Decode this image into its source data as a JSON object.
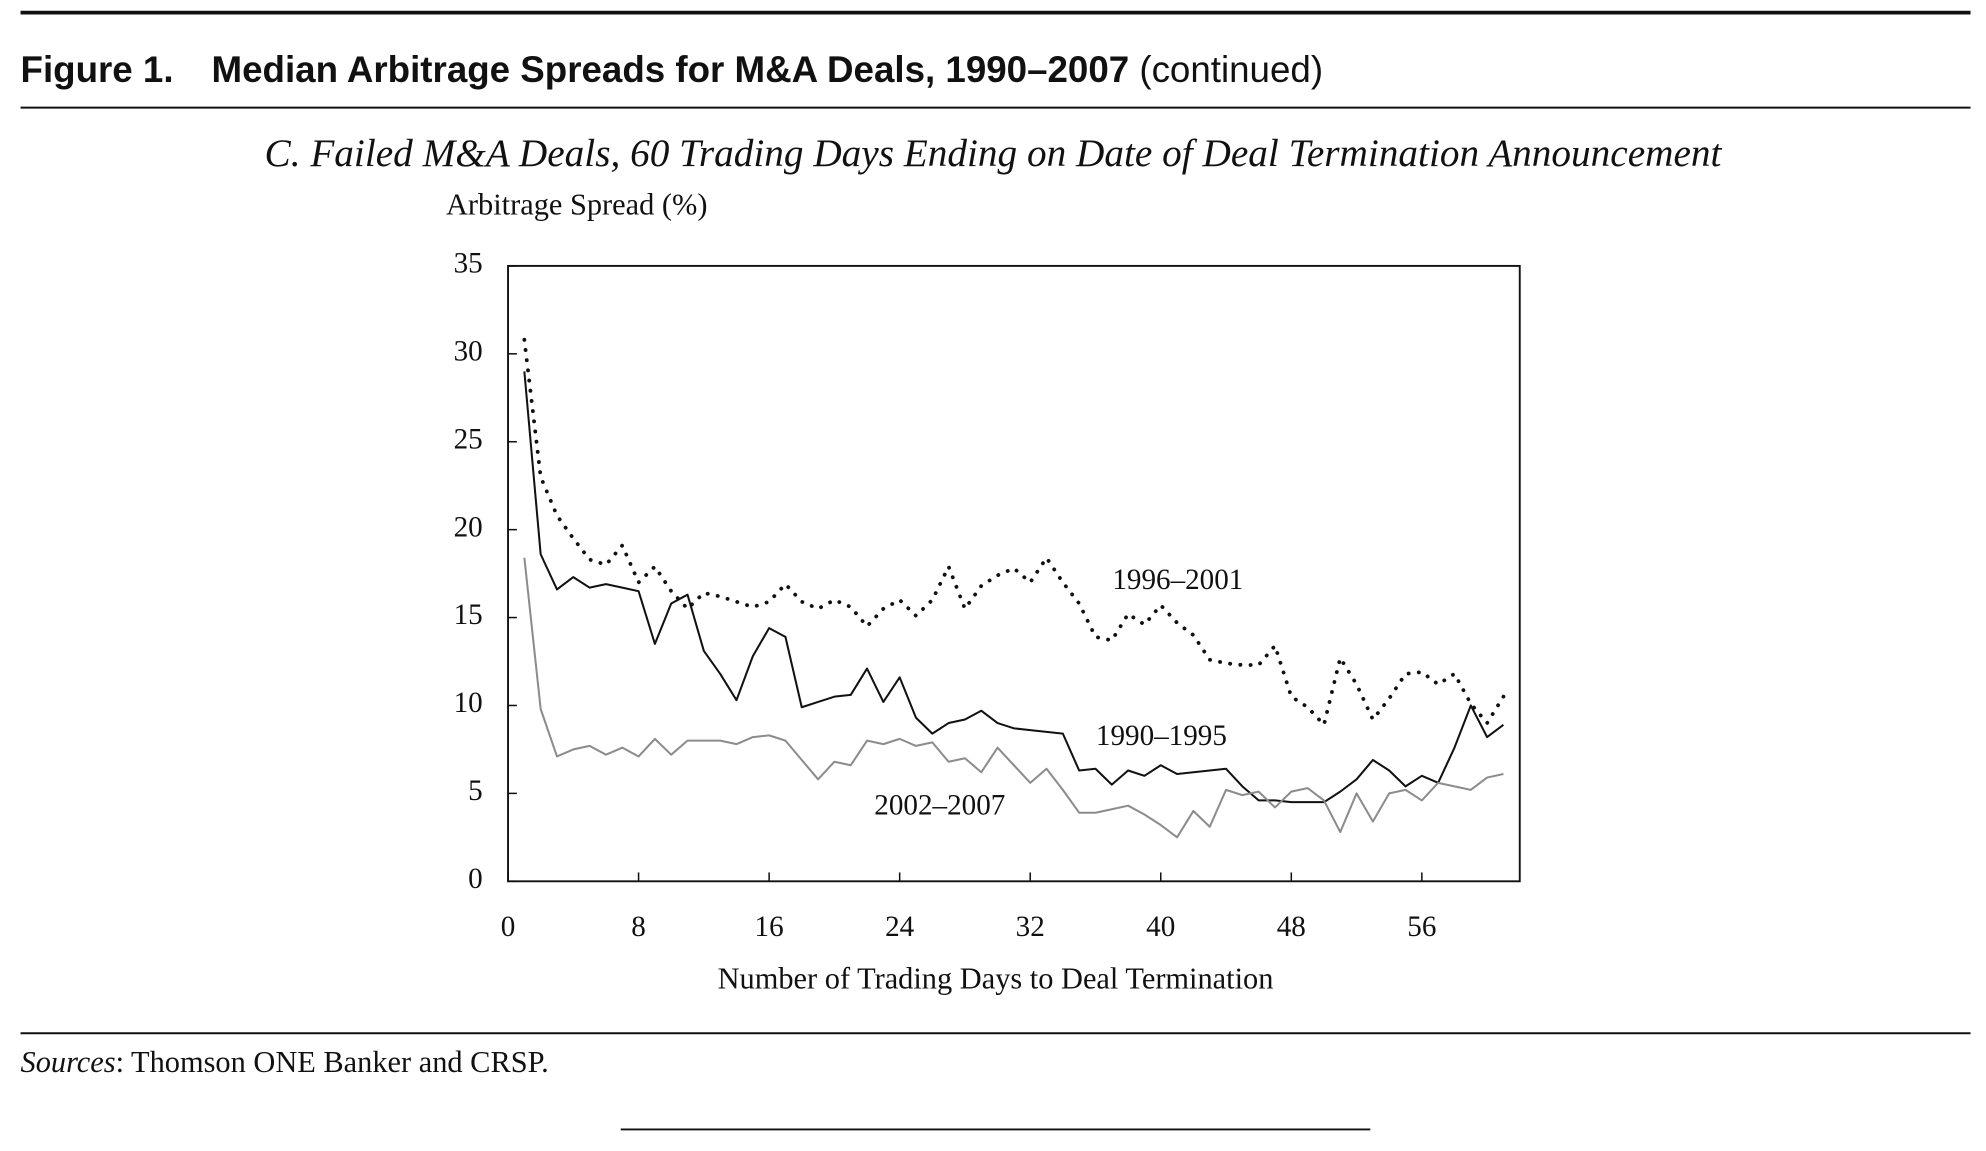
{
  "header": {
    "figure": "Figure 1.",
    "title": "Median Arbitrage Spreads for M&A Deals, 1990–2007",
    "suffix": "(continued)"
  },
  "chart_data": {
    "type": "line",
    "title": "C. Failed M&A Deals, 60 Trading Days Ending on Date of Deal Termination Announcement",
    "y_label": "Arbitrage Spread (%)",
    "x_label": "Number of Trading Days to Deal Termination",
    "x": [
      1,
      2,
      3,
      4,
      5,
      6,
      7,
      8,
      9,
      10,
      11,
      12,
      13,
      14,
      15,
      16,
      17,
      18,
      19,
      20,
      21,
      22,
      23,
      24,
      25,
      26,
      27,
      28,
      29,
      30,
      31,
      32,
      33,
      34,
      35,
      36,
      37,
      38,
      39,
      40,
      41,
      42,
      43,
      44,
      45,
      46,
      47,
      48,
      49,
      50,
      51,
      52,
      53,
      54,
      55,
      56,
      57,
      58,
      59,
      60,
      61
    ],
    "series": [
      {
        "name": "1996–2001",
        "color": "#111111",
        "dash": "dotted",
        "values": [
          30.8,
          23,
          20.8,
          19.5,
          18.3,
          18.0,
          19.1,
          17.0,
          17.9,
          16.5,
          15.5,
          16.4,
          16.2,
          15.9,
          15.6,
          15.9,
          16.9,
          15.9,
          15.5,
          16.0,
          15.6,
          14.5,
          15.5,
          16.0,
          15.1,
          16.0,
          17.9,
          15.5,
          16.8,
          17.4,
          17.8,
          17.0,
          18.4,
          17.0,
          15.8,
          13.9,
          13.7,
          15.2,
          14.6,
          15.7,
          14.7,
          14.0,
          12.6,
          12.4,
          12.3,
          12.3,
          13.4,
          10.5,
          9.9,
          8.9,
          12.7,
          11.2,
          9.2,
          10.4,
          11.8,
          11.9,
          11.2,
          11.8,
          10.1,
          9.0,
          10.5
        ]
      },
      {
        "name": "1990–1995",
        "color": "#111111",
        "dash": "solid",
        "values": [
          29.0,
          18.6,
          16.6,
          17.3,
          16.7,
          16.9,
          16.7,
          16.5,
          13.5,
          15.8,
          16.3,
          13.1,
          11.8,
          10.3,
          12.8,
          14.4,
          13.9,
          9.9,
          10.2,
          10.5,
          10.6,
          12.1,
          10.2,
          11.6,
          9.3,
          8.4,
          9.0,
          9.2,
          9.7,
          9.0,
          8.7,
          8.6,
          8.5,
          8.4,
          6.3,
          6.4,
          5.5,
          6.3,
          6.0,
          6.6,
          6.1,
          6.2,
          6.3,
          6.4,
          5.4,
          4.6,
          4.6,
          4.5,
          4.5,
          4.5,
          5.1,
          5.8,
          6.9,
          6.3,
          5.4,
          6.0,
          5.6,
          7.6,
          10.0,
          8.2,
          8.9
        ]
      },
      {
        "name": "2002–2007",
        "color": "#8c8c8c",
        "dash": "solid",
        "values": [
          18.4,
          9.8,
          7.1,
          7.5,
          7.7,
          7.2,
          7.6,
          7.1,
          8.1,
          7.2,
          8.0,
          8.0,
          8.0,
          7.8,
          8.2,
          8.3,
          8.0,
          6.9,
          5.8,
          6.8,
          6.6,
          8.0,
          7.8,
          8.1,
          7.7,
          7.9,
          6.8,
          7.0,
          6.2,
          7.6,
          6.6,
          5.6,
          6.4,
          5.2,
          3.9,
          3.9,
          4.1,
          4.3,
          3.8,
          3.2,
          2.5,
          4.0,
          3.1,
          5.2,
          4.9,
          5.1,
          4.2,
          5.1,
          5.3,
          4.6,
          2.8,
          5.0,
          3.4,
          5.0,
          5.2,
          4.6,
          5.6,
          5.4,
          5.2,
          5.9,
          6.1
        ]
      }
    ],
    "xlim": [
      0,
      62
    ],
    "xticks": [
      0,
      8,
      16,
      24,
      32,
      40,
      48,
      56
    ],
    "ylim": [
      0,
      35
    ],
    "yticks": [
      0,
      5,
      10,
      15,
      20,
      25,
      30,
      35
    ]
  },
  "footer": {
    "sources_label": "Sources",
    "sources_text": ": Thomson ONE Banker and CRSP."
  }
}
